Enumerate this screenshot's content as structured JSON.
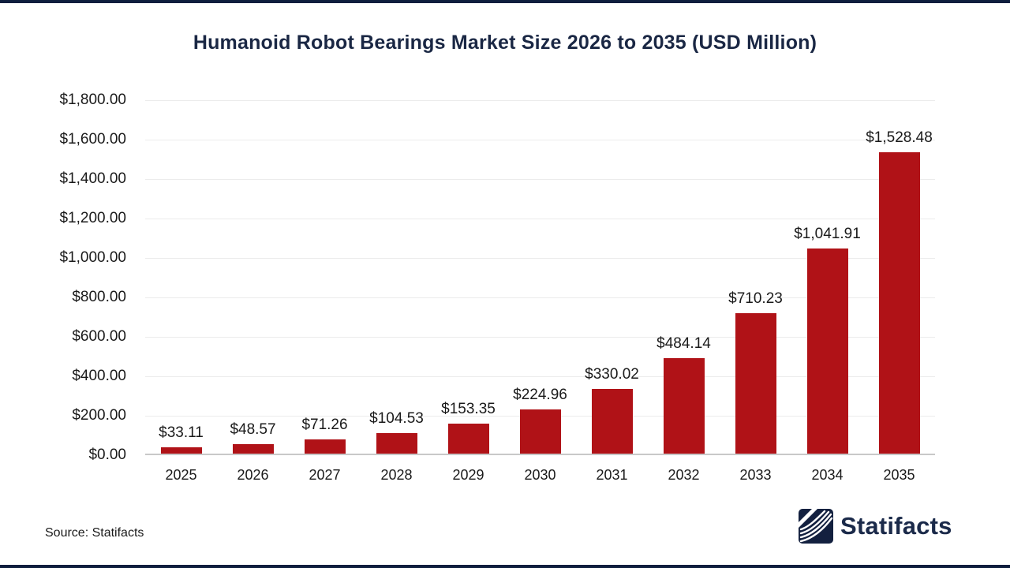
{
  "page": {
    "title": "Humanoid Robot Bearings Market Size 2026 to 2035 (USD Million)",
    "source_text": "Source: Statifacts",
    "brand_name": "Statifacts",
    "colors": {
      "bar": "#b01217",
      "title_navy": "#1a2744",
      "strip_navy": "#0e1e3e",
      "gridline": "#ececec",
      "axis_line": "#c8c8c8",
      "logo_navy": "#13203f"
    }
  },
  "chart_data": {
    "type": "bar",
    "title": "Humanoid Robot Bearings Market Size 2026 to 2035 (USD Million)",
    "xlabel": "",
    "ylabel": "",
    "ylim": [
      0,
      1800
    ],
    "grid": true,
    "legend": "none",
    "bar_color": "#b01217",
    "categories": [
      "2025",
      "2026",
      "2027",
      "2028",
      "2029",
      "2030",
      "2031",
      "2032",
      "2033",
      "2034",
      "2035"
    ],
    "values": [
      33.11,
      48.57,
      71.26,
      104.53,
      153.35,
      224.96,
      330.02,
      484.14,
      710.23,
      1041.91,
      1528.48
    ],
    "value_labels": [
      "$33.11",
      "$48.57",
      "$71.26",
      "$104.53",
      "$153.35",
      "$224.96",
      "$330.02",
      "$484.14",
      "$710.23",
      "$1,041.91",
      "$1,528.48"
    ],
    "y_ticks": [
      {
        "value": 1800,
        "label": "$1,800.00"
      },
      {
        "value": 1600,
        "label": "$1,600.00"
      },
      {
        "value": 1400,
        "label": "$1,400.00"
      },
      {
        "value": 1200,
        "label": "$1,200.00"
      },
      {
        "value": 1000,
        "label": "$1,000.00"
      },
      {
        "value": 800,
        "label": "$800.00"
      },
      {
        "value": 600,
        "label": "$600.00"
      },
      {
        "value": 400,
        "label": "$400.00"
      },
      {
        "value": 200,
        "label": "$200.00"
      },
      {
        "value": 0,
        "label": "$0.00"
      }
    ]
  }
}
